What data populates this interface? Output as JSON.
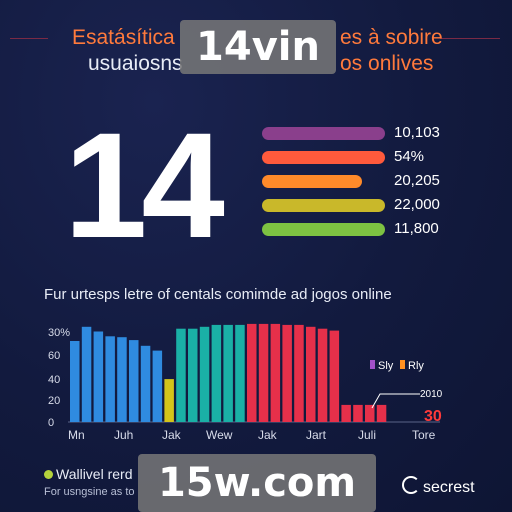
{
  "header": {
    "title_line1_left": "Esatásítica",
    "title_line1_right": "es à sobire",
    "title_line2_left": "usuaiosns",
    "title_line2_right": "os onlives"
  },
  "watermarks": {
    "top": "14vin",
    "bottom": "15w.com"
  },
  "highlight": {
    "number": "14"
  },
  "stats": [
    {
      "value_label": "10,103",
      "fill": 0.66,
      "color": "#8a3f8c"
    },
    {
      "value_label": "54%",
      "fill": 0.66,
      "color": "#ff5a3c"
    },
    {
      "value_label": "20,205",
      "fill": 0.54,
      "color": "#ff8a2a"
    },
    {
      "value_label": "22,000",
      "fill": 0.66,
      "color": "#c9b82a"
    },
    {
      "value_label": "11,800",
      "fill": 0.66,
      "color": "#7dc242"
    }
  ],
  "chart_data": {
    "type": "bar",
    "title": "Fur urtesps letre of centals comimde ad jogos online",
    "y_ticks": [
      "30%",
      "60",
      "40",
      "20",
      "0"
    ],
    "ylim": [
      0,
      105
    ],
    "x_tick_labels": [
      "Mn",
      "Juh",
      "Jak",
      "Wew",
      "Jak",
      "Jart",
      "Juli",
      "Tore"
    ],
    "values": [
      85,
      100,
      95,
      90,
      89,
      86,
      80,
      75,
      45,
      98,
      98,
      100,
      102,
      102,
      102,
      103,
      103,
      103,
      102,
      102,
      100,
      98,
      96,
      18,
      18,
      18,
      18
    ],
    "bar_colors": [
      "#2f8be0",
      "#2f8be0",
      "#2f8be0",
      "#2f8be0",
      "#2f8be0",
      "#2f8be0",
      "#2f8be0",
      "#2f8be0",
      "#d4c41a",
      "#1ab0a6",
      "#1ab0a6",
      "#1ab0a6",
      "#1ab0a6",
      "#1ab0a6",
      "#1ab0a6",
      "#e6304a",
      "#e6304a",
      "#e6304a",
      "#e6304a",
      "#e6304a",
      "#e6304a",
      "#e6304a",
      "#e6304a",
      "#e6304a",
      "#e6304a",
      "#e6304a",
      "#e6304a"
    ],
    "legend": [
      {
        "label": "Sly",
        "color": "#a050c8"
      },
      {
        "label": "Rly",
        "color": "#ff9020"
      }
    ],
    "annotations": {
      "year": "2010",
      "value": "30"
    }
  },
  "footer": {
    "label": "Wallivel rerd",
    "sub": "For usngsine as to",
    "brand": "secrest"
  }
}
